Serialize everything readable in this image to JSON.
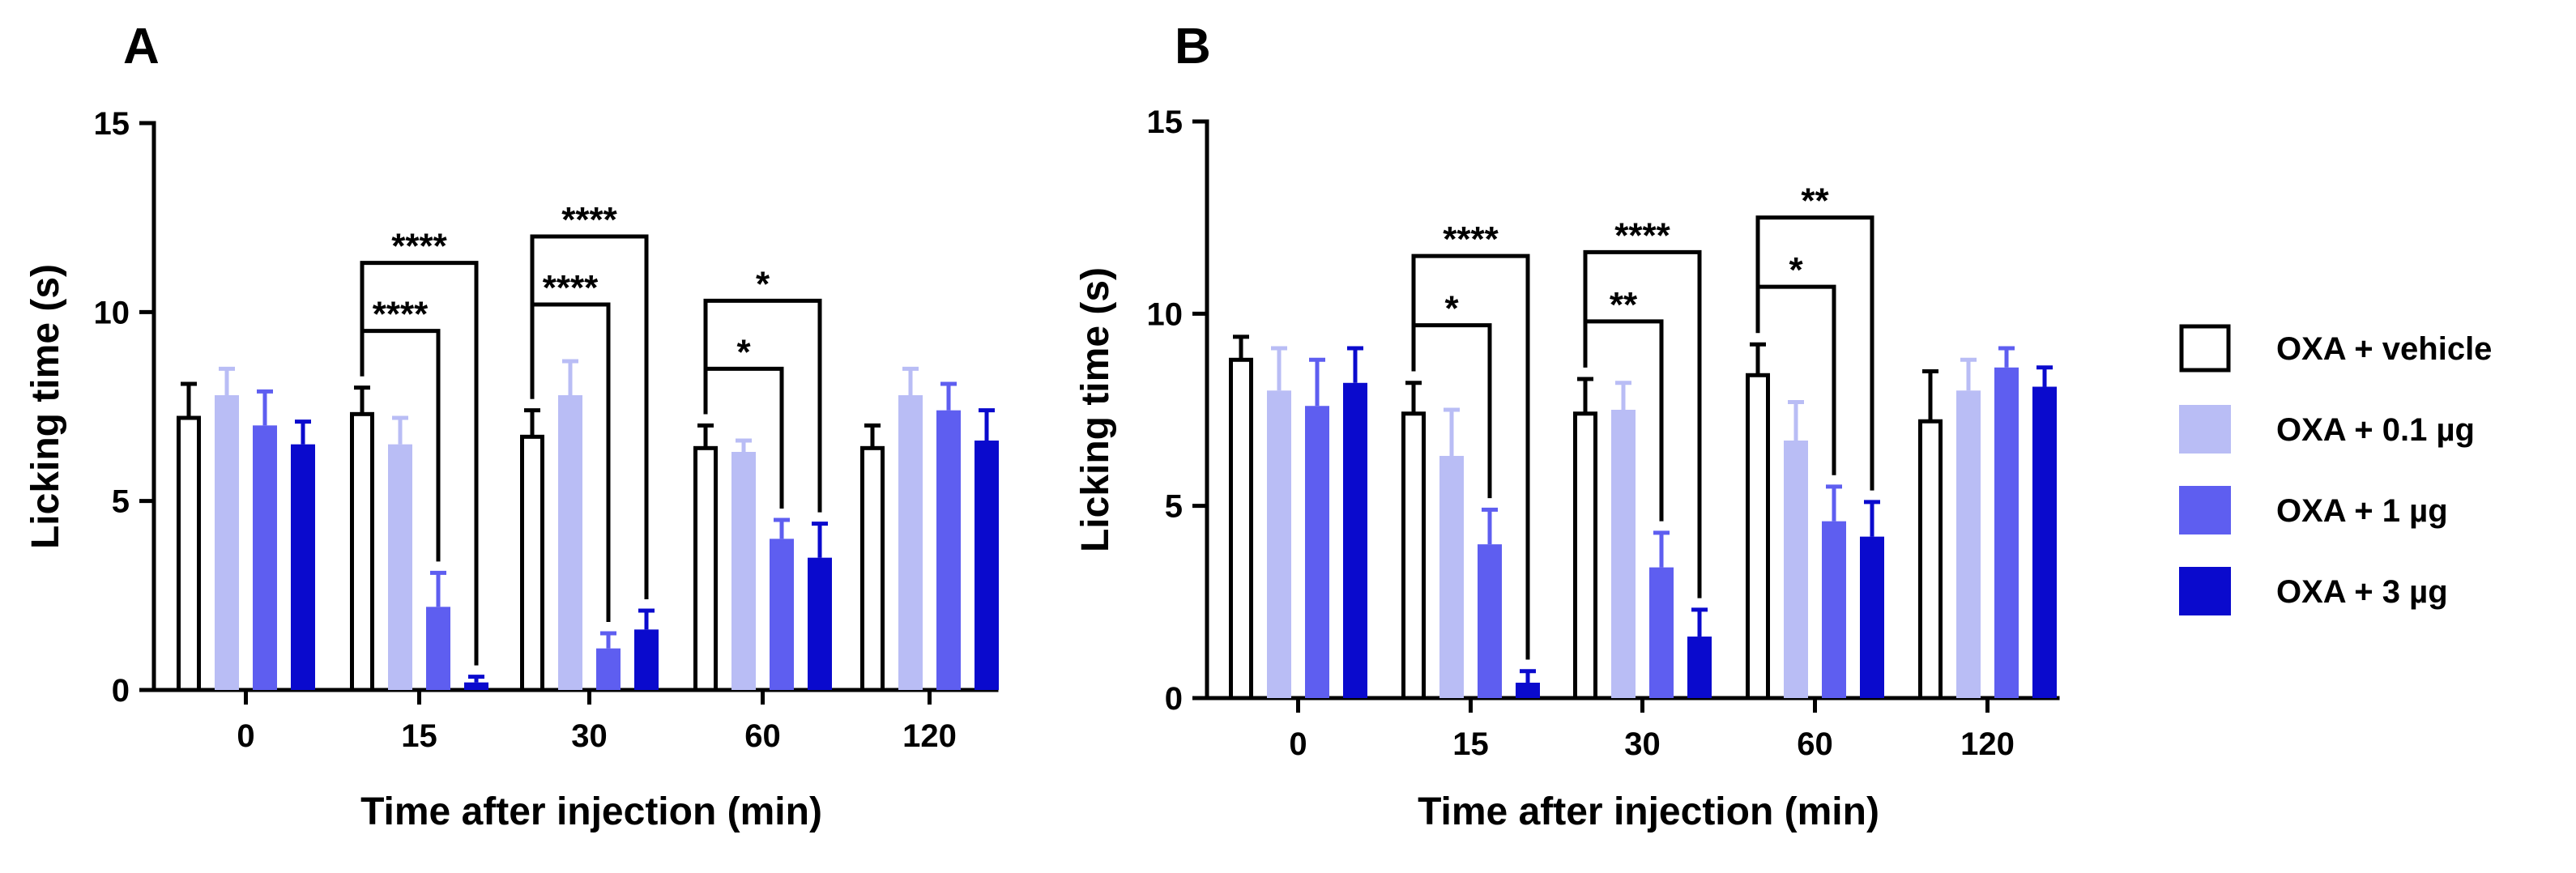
{
  "chart_data": [
    {
      "type": "bar",
      "panel": "A",
      "xlabel": "Time after injection (min)",
      "ylabel": "Licking time (s)",
      "ylim": [
        0,
        15
      ],
      "yticks": [
        0,
        5,
        10,
        15
      ],
      "categories": [
        "0",
        "15",
        "30",
        "60",
        "120"
      ],
      "series": [
        {
          "name": "OXA + vehicle",
          "values": [
            7.2,
            7.3,
            6.7,
            6.4,
            6.4
          ],
          "errors": [
            0.9,
            0.7,
            0.7,
            0.6,
            0.6
          ]
        },
        {
          "name": "OXA + 0.1 µg",
          "values": [
            7.8,
            6.5,
            7.8,
            6.3,
            7.8
          ],
          "errors": [
            0.7,
            0.7,
            0.9,
            0.3,
            0.7
          ]
        },
        {
          "name": "OXA + 1 µg",
          "values": [
            7.0,
            2.2,
            1.1,
            4.0,
            7.4
          ],
          "errors": [
            0.9,
            0.9,
            0.4,
            0.5,
            0.7
          ]
        },
        {
          "name": "OXA + 3 µg",
          "values": [
            6.5,
            0.2,
            1.6,
            3.5,
            6.6
          ],
          "errors": [
            0.6,
            0.15,
            0.5,
            0.9,
            0.8
          ]
        }
      ],
      "significance": [
        {
          "category": "15",
          "compare_series": 2,
          "label": "****"
        },
        {
          "category": "15",
          "compare_series": 3,
          "label": "****"
        },
        {
          "category": "30",
          "compare_series": 2,
          "label": "****"
        },
        {
          "category": "30",
          "compare_series": 3,
          "label": "****"
        },
        {
          "category": "60",
          "compare_series": 2,
          "label": "*"
        },
        {
          "category": "60",
          "compare_series": 3,
          "label": "*"
        }
      ]
    },
    {
      "type": "bar",
      "panel": "B",
      "xlabel": "Time after injection (min)",
      "ylabel": "Licking time (s)",
      "ylim": [
        0,
        15
      ],
      "yticks": [
        0,
        5,
        10,
        15
      ],
      "categories": [
        "0",
        "15",
        "30",
        "60",
        "120"
      ],
      "series": [
        {
          "name": "OXA + vehicle",
          "values": [
            8.8,
            7.4,
            7.4,
            8.4,
            7.2
          ],
          "errors": [
            0.6,
            0.8,
            0.9,
            0.8,
            1.3
          ]
        },
        {
          "name": "OXA + 0.1 µg",
          "values": [
            8.0,
            6.3,
            7.5,
            6.7,
            8.0
          ],
          "errors": [
            1.1,
            1.2,
            0.7,
            1.0,
            0.8
          ]
        },
        {
          "name": "OXA + 1 µg",
          "values": [
            7.6,
            4.0,
            3.4,
            4.6,
            8.6
          ],
          "errors": [
            1.2,
            0.9,
            0.9,
            0.9,
            0.5
          ]
        },
        {
          "name": "OXA + 3 µg",
          "values": [
            8.2,
            0.4,
            1.6,
            4.2,
            8.1
          ],
          "errors": [
            0.9,
            0.3,
            0.7,
            0.9,
            0.5
          ]
        }
      ],
      "significance": [
        {
          "category": "15",
          "compare_series": 2,
          "label": "*"
        },
        {
          "category": "15",
          "compare_series": 3,
          "label": "****"
        },
        {
          "category": "30",
          "compare_series": 2,
          "label": "**"
        },
        {
          "category": "30",
          "compare_series": 3,
          "label": "****"
        },
        {
          "category": "60",
          "compare_series": 2,
          "label": "*"
        },
        {
          "category": "60",
          "compare_series": 3,
          "label": "**"
        }
      ]
    }
  ],
  "legend": {
    "position": "right",
    "items": [
      {
        "label": "OXA + vehicle",
        "color": "#ffffff",
        "border": "#000000"
      },
      {
        "label": "OXA + 0.1 µg",
        "color": "#b9bdf5",
        "border": "#b9bdf5"
      },
      {
        "label": "OXA + 1 µg",
        "color": "#5e5ef0",
        "border": "#5e5ef0"
      },
      {
        "label": "OXA + 3 µg",
        "color": "#0a0acd",
        "border": "#0a0acd"
      }
    ]
  }
}
